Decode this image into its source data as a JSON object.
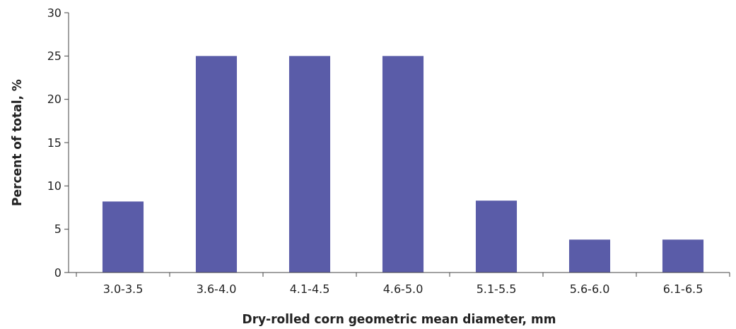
{
  "chart_data": {
    "type": "bar",
    "xlabel": "Dry-rolled corn geometric mean diameter, mm",
    "ylabel": "Percent of total, %",
    "categories": [
      "3.0-3.5",
      "3.6-4.0",
      "4.1-4.5",
      "4.6-5.0",
      "5.1-5.5",
      "5.6-6.0",
      "6.1-6.5"
    ],
    "values": [
      8.2,
      25,
      25,
      25,
      8.3,
      3.8,
      3.8
    ],
    "color": "#5a5ca8",
    "ylim": [
      0,
      30
    ],
    "yticks": [
      0,
      5,
      10,
      15,
      20,
      25,
      30
    ]
  }
}
